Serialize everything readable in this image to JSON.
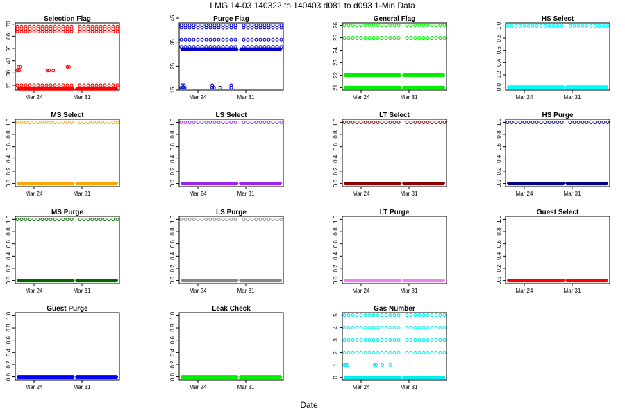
{
  "figure": {
    "title": "LMG   14-03    140322 to 140403    d081 to d093   1-Min Data",
    "xlabel": "Date"
  },
  "chart_data": [
    {
      "type": "scatter",
      "title": "Selection Flag",
      "color": "#ff0000",
      "ylim": [
        16,
        71
      ],
      "yticks": [
        "20",
        "30",
        "40",
        "50",
        "60",
        "70"
      ],
      "xticks": [
        "Mar 24",
        "Mar 31"
      ],
      "levels": [
        {
          "y": 17,
          "mode": "dense"
        },
        {
          "y": 20,
          "mode": "sparse"
        },
        {
          "y": 64,
          "mode": "sparse"
        },
        {
          "y": 66,
          "mode": "sparse"
        },
        {
          "y": 68,
          "mode": "sparse"
        }
      ],
      "extras": [
        {
          "y": 32,
          "from": 0.0,
          "to": 0.03
        },
        {
          "y": 35,
          "from": 0.01,
          "to": 0.03
        },
        {
          "y": 32,
          "from": 0.3,
          "to": 0.32
        },
        {
          "y": 32,
          "from": 0.36,
          "to": 0.37
        },
        {
          "y": 35,
          "from": 0.5,
          "to": 0.52
        }
      ]
    },
    {
      "type": "scatter",
      "title": "Purge Flag",
      "color": "#0000cc",
      "ylim": [
        15,
        43
      ],
      "yticks": [
        "15",
        "25",
        "35",
        "45"
      ],
      "xticks": [
        "Mar 24",
        "Mar 31"
      ],
      "levels": [
        {
          "y": 32,
          "mode": "dense"
        },
        {
          "y": 33,
          "mode": "sparse"
        },
        {
          "y": 36,
          "mode": "sparse"
        },
        {
          "y": 41,
          "mode": "sparse"
        },
        {
          "y": 42,
          "mode": "sparse"
        }
      ],
      "extras": [
        {
          "y": 16,
          "from": 0.0,
          "to": 0.04
        },
        {
          "y": 17,
          "from": 0.01,
          "to": 0.03
        },
        {
          "y": 16,
          "from": 0.31,
          "to": 0.33
        },
        {
          "y": 17,
          "from": 0.31,
          "to": 0.32
        },
        {
          "y": 16,
          "from": 0.39,
          "to": 0.4
        },
        {
          "y": 16,
          "from": 0.5,
          "to": 0.51
        },
        {
          "y": 17,
          "from": 0.5,
          "to": 0.51
        }
      ]
    },
    {
      "type": "scatter",
      "title": "General Flag",
      "color": "#00ee00",
      "ylim": [
        20.8,
        26.2
      ],
      "yticks": [
        "21",
        "22",
        "23",
        "24",
        "25",
        "26"
      ],
      "xticks": [
        "Mar 24",
        "Mar 31"
      ],
      "levels": [
        {
          "y": 21,
          "mode": "dense"
        },
        {
          "y": 22,
          "mode": "dense"
        },
        {
          "y": 25,
          "mode": "sparse"
        },
        {
          "y": 26,
          "mode": "sparse"
        }
      ],
      "extras": []
    },
    {
      "type": "scatter",
      "title": "HS Select",
      "color": "#00ffff",
      "ylim": [
        -0.05,
        1.05
      ],
      "yticks": [
        "0.0",
        "0.2",
        "0.4",
        "0.6",
        "0.8",
        "1.0"
      ],
      "xticks": [
        "Mar 24",
        "Mar 31"
      ],
      "levels": [
        {
          "y": 0,
          "mode": "dense"
        },
        {
          "y": 1,
          "mode": "sparse"
        }
      ],
      "extras": []
    },
    {
      "type": "scatter",
      "title": "MS Select",
      "color": "#ffa500",
      "ylim": [
        -0.05,
        1.05
      ],
      "yticks": [
        "0.0",
        "0.2",
        "0.4",
        "0.6",
        "0.8",
        "1.0"
      ],
      "xticks": [
        "Mar 24",
        "Mar 31"
      ],
      "levels": [
        {
          "y": 0,
          "mode": "dense"
        },
        {
          "y": 1,
          "mode": "sparse"
        }
      ],
      "extras": []
    },
    {
      "type": "scatter",
      "title": "LS Select",
      "color": "#a020f0",
      "ylim": [
        -0.05,
        1.05
      ],
      "yticks": [
        "0.0",
        "0.2",
        "0.4",
        "0.6",
        "0.8",
        "1.0"
      ],
      "xticks": [
        "Mar 24",
        "Mar 31"
      ],
      "levels": [
        {
          "y": 0,
          "mode": "dense"
        },
        {
          "y": 1,
          "mode": "sparse"
        }
      ],
      "extras": []
    },
    {
      "type": "scatter",
      "title": "LT Select",
      "color": "#8b0000",
      "ylim": [
        -0.05,
        1.05
      ],
      "yticks": [
        "0.0",
        "0.2",
        "0.4",
        "0.6",
        "0.8",
        "1.0"
      ],
      "xticks": [
        "Mar 24",
        "Mar 31"
      ],
      "levels": [
        {
          "y": 0,
          "mode": "dense"
        },
        {
          "y": 1,
          "mode": "sparse"
        }
      ],
      "extras": []
    },
    {
      "type": "scatter",
      "title": "HS Purge",
      "color": "#000080",
      "ylim": [
        -0.05,
        1.05
      ],
      "yticks": [
        "0.0",
        "0.2",
        "0.4",
        "0.6",
        "0.8",
        "1.0"
      ],
      "xticks": [
        "Mar 24",
        "Mar 31"
      ],
      "levels": [
        {
          "y": 0,
          "mode": "dense"
        },
        {
          "y": 1,
          "mode": "sparse"
        }
      ],
      "extras": []
    },
    {
      "type": "scatter",
      "title": "MS Purge",
      "color": "#006400",
      "ylim": [
        -0.05,
        1.05
      ],
      "yticks": [
        "0.0",
        "0.2",
        "0.4",
        "0.6",
        "0.8",
        "1.0"
      ],
      "xticks": [
        "Mar 24",
        "Mar 31"
      ],
      "levels": [
        {
          "y": 0,
          "mode": "dense"
        },
        {
          "y": 1,
          "mode": "sparse"
        }
      ],
      "extras": []
    },
    {
      "type": "scatter",
      "title": "LS Purge",
      "color": "#888888",
      "ylim": [
        -0.05,
        1.05
      ],
      "yticks": [
        "0.0",
        "0.2",
        "0.4",
        "0.6",
        "0.8",
        "1.0"
      ],
      "xticks": [
        "Mar 24",
        "Mar 31"
      ],
      "levels": [
        {
          "y": 0,
          "mode": "dense"
        },
        {
          "y": 1,
          "mode": "sparse"
        }
      ],
      "extras": []
    },
    {
      "type": "scatter",
      "title": "LT Purge",
      "color": "#ee82ee",
      "ylim": [
        -0.05,
        1.05
      ],
      "yticks": [
        "0.0",
        "0.2",
        "0.4",
        "0.6",
        "0.8",
        "1.0"
      ],
      "xticks": [
        "Mar 24",
        "Mar 31"
      ],
      "levels": [
        {
          "y": 0,
          "mode": "dense"
        }
      ],
      "extras": []
    },
    {
      "type": "scatter",
      "title": "Guest Select",
      "color": "#ff0000",
      "ylim": [
        -0.05,
        1.05
      ],
      "yticks": [
        "0.0",
        "0.2",
        "0.4",
        "0.6",
        "0.8",
        "1.0"
      ],
      "xticks": [
        "Mar 24",
        "Mar 31"
      ],
      "levels": [
        {
          "y": 0,
          "mode": "dense"
        }
      ],
      "extras": []
    },
    {
      "type": "scatter",
      "title": "Guest Purge",
      "color": "#0000ff",
      "ylim": [
        -0.05,
        1.05
      ],
      "yticks": [
        "0.0",
        "0.2",
        "0.4",
        "0.6",
        "0.8",
        "1.0"
      ],
      "xticks": [
        "Mar 24",
        "Mar 31"
      ],
      "levels": [
        {
          "y": 0,
          "mode": "dense"
        }
      ],
      "extras": []
    },
    {
      "type": "scatter",
      "title": "Leak Check",
      "color": "#00ee00",
      "ylim": [
        -0.05,
        1.05
      ],
      "yticks": [
        "0.0",
        "0.2",
        "0.4",
        "0.6",
        "0.8",
        "1.0"
      ],
      "xticks": [
        "Mar 24",
        "Mar 31"
      ],
      "levels": [
        {
          "y": 0,
          "mode": "dense"
        }
      ],
      "extras": []
    },
    {
      "type": "scatter",
      "title": "Gas Number",
      "color": "#00eeee",
      "ylim": [
        -0.2,
        5.2
      ],
      "yticks": [
        "0",
        "1",
        "2",
        "3",
        "4",
        "5"
      ],
      "xticks": [
        "Mar 24",
        "Mar 31"
      ],
      "levels": [
        {
          "y": 0,
          "mode": "dense"
        },
        {
          "y": 2,
          "mode": "sparse"
        },
        {
          "y": 3,
          "mode": "sparse"
        },
        {
          "y": 4,
          "mode": "sparse"
        },
        {
          "y": 5,
          "mode": "sparse"
        }
      ],
      "extras": [
        {
          "y": 1,
          "from": 0.0,
          "to": 0.05
        },
        {
          "y": 1,
          "from": 0.3,
          "to": 0.33
        },
        {
          "y": 1,
          "from": 0.38,
          "to": 0.39
        },
        {
          "y": 1,
          "from": 0.46,
          "to": 0.47
        }
      ]
    }
  ]
}
